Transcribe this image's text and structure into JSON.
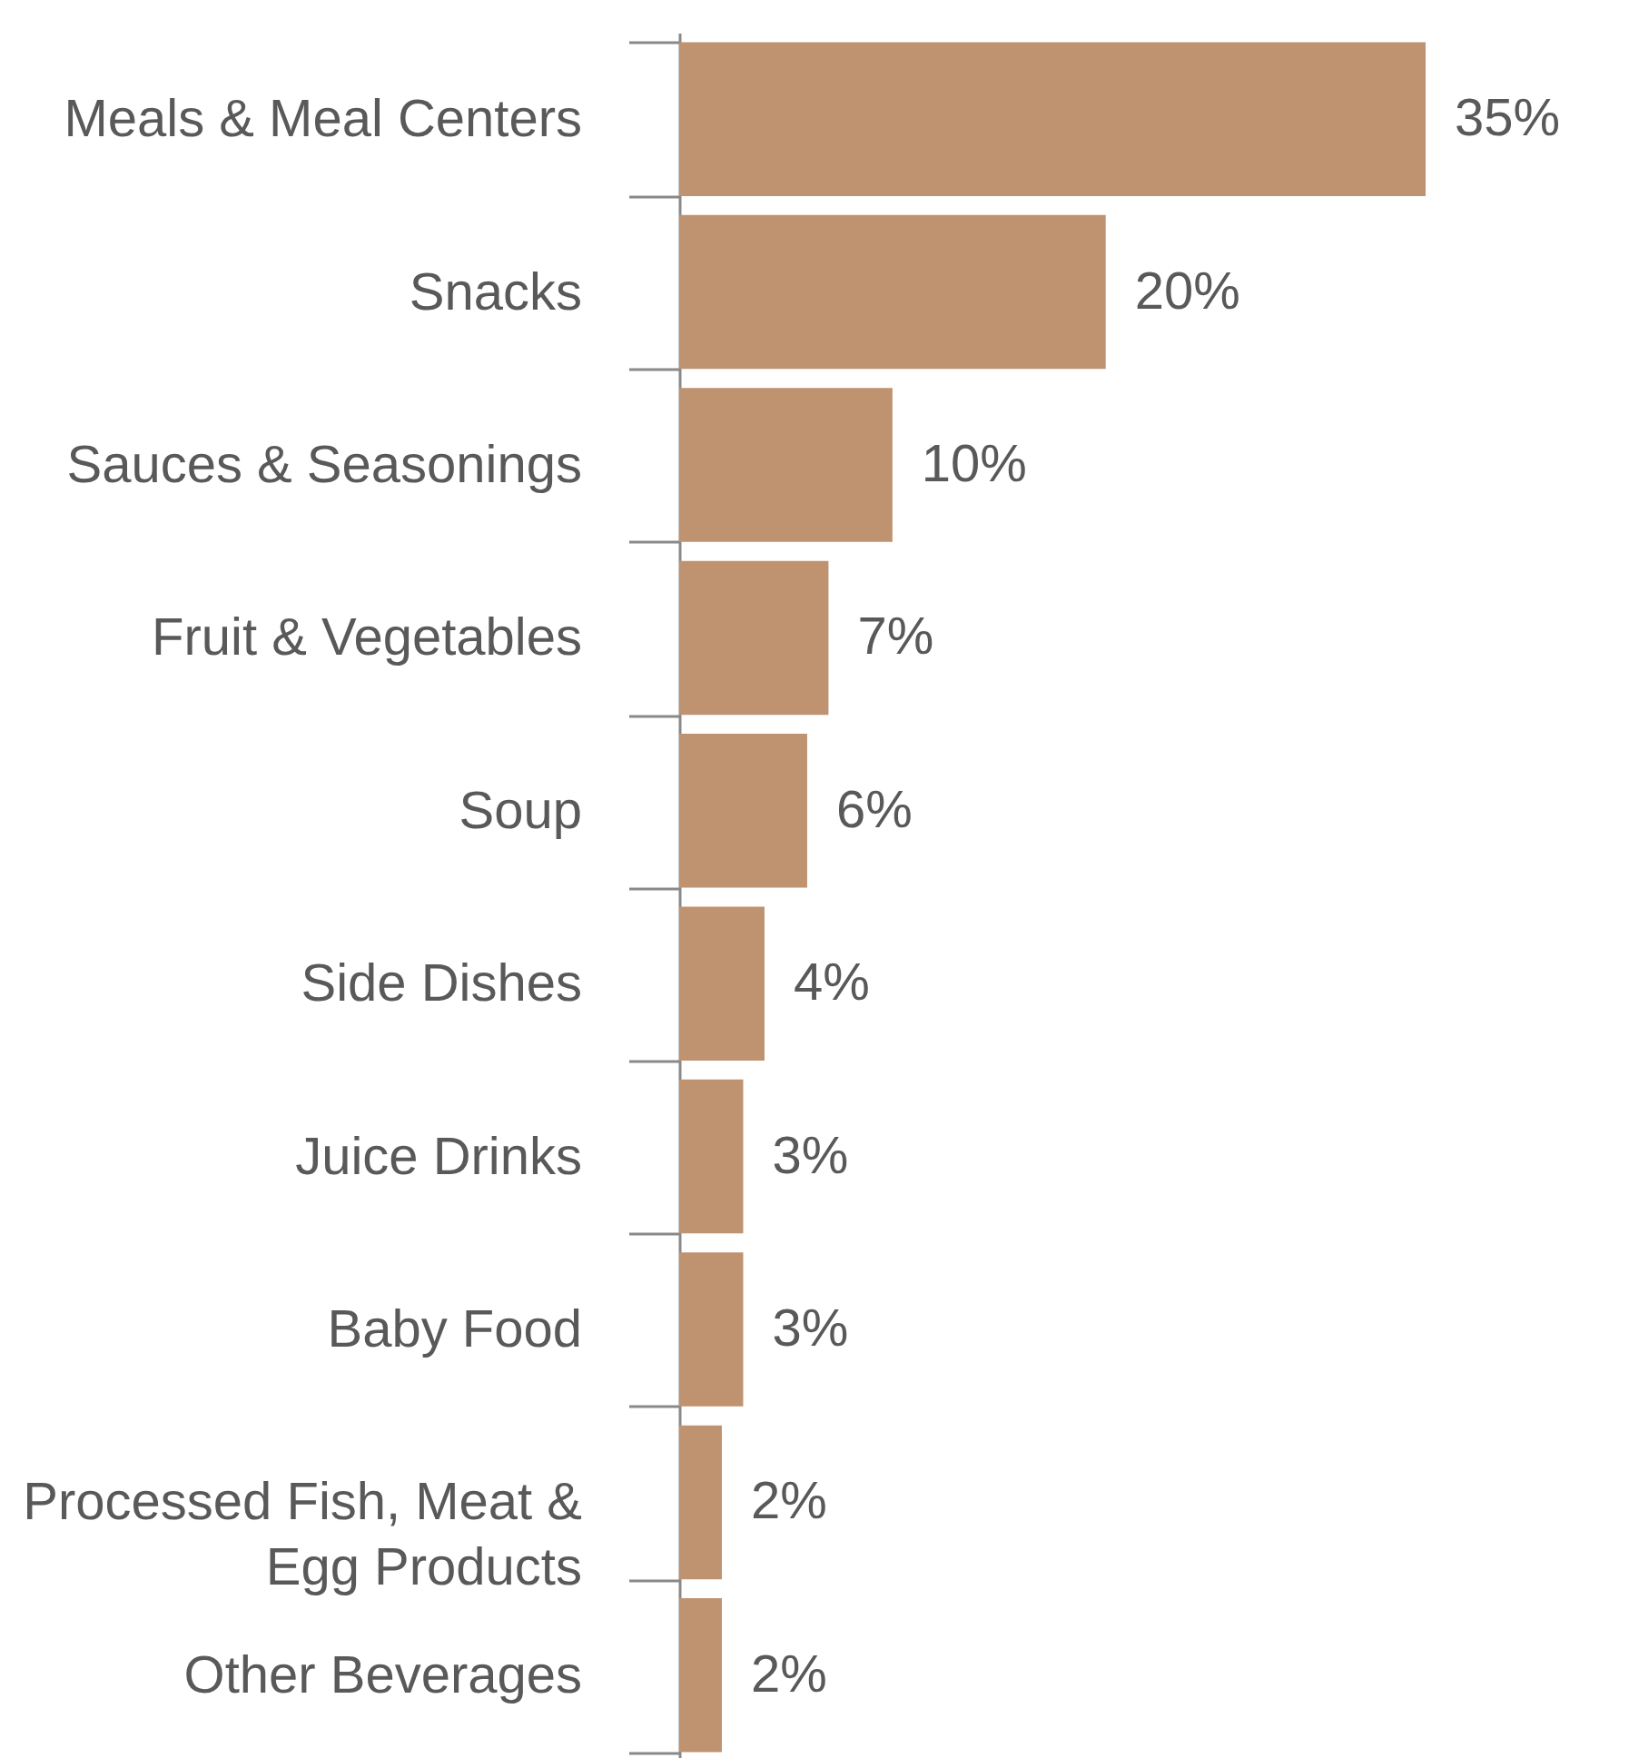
{
  "chart_data": {
    "type": "bar",
    "orientation": "horizontal",
    "categories": [
      "Meals &  Meal Centers",
      "Snacks",
      "Sauces & Seasonings",
      "Fruit &  Vegetables",
      "Soup",
      "Side Dishes",
      "Juice Drinks",
      "Baby Food",
      "Processed Fish, Meat &\nEgg Products",
      "Other Beverages"
    ],
    "values": [
      35,
      20,
      10,
      7,
      6,
      4,
      3,
      3,
      2,
      2
    ],
    "value_labels": [
      "35%",
      "20%",
      "10%",
      "7%",
      "6%",
      "4%",
      "3%",
      "3%",
      "2%",
      "2%"
    ],
    "color": "#bf9270",
    "xlim": [
      0,
      35
    ],
    "tick_labels": "y",
    "grid": false
  }
}
